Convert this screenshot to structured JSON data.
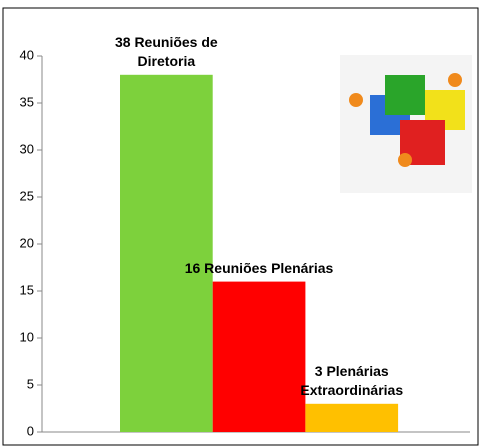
{
  "chart_data": {
    "type": "bar",
    "values": [
      38,
      16,
      3
    ],
    "value_labels": [
      "38 Reuniões de Diretoria",
      "16 Reuniões Plenárias",
      "3 Plenárias Extraordinárias"
    ],
    "colors": [
      "#7dd13c",
      "#ff0000",
      "#ffc000"
    ],
    "ylim": [
      0,
      40
    ],
    "yticks": [
      0,
      5,
      10,
      15,
      20,
      25,
      30,
      35,
      40
    ],
    "grid": false
  }
}
